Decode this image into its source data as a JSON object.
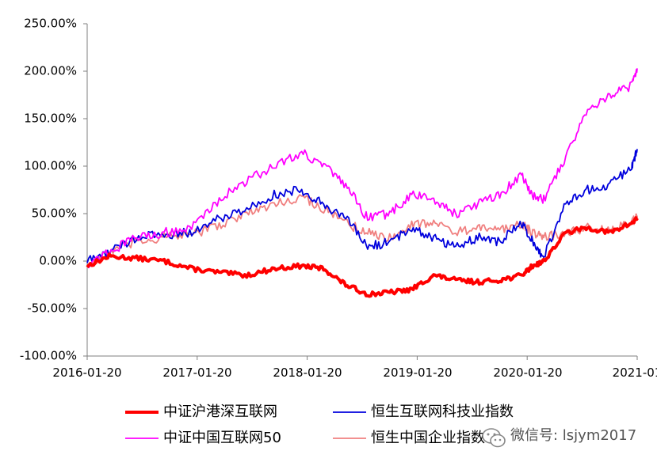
{
  "chart_data": {
    "type": "line",
    "title": "",
    "xlabel": "",
    "ylabel": "",
    "x_tick_labels": [
      "2016-01-20",
      "2017-01-20",
      "2018-01-20",
      "2019-01-20",
      "2020-01-20",
      "2021-01"
    ],
    "y_tick_labels": [
      "250.00%",
      "200.00%",
      "150.00%",
      "100.00%",
      "50.00%",
      "0.00%",
      "-50.00%",
      "-100.00%"
    ],
    "y_ticks": [
      250,
      200,
      150,
      100,
      50,
      0,
      -50,
      -100
    ],
    "ylim": [
      -100,
      250
    ],
    "xlim": [
      2016.05,
      2021.05
    ],
    "grid": false,
    "legend_position": "bottom",
    "x": [
      2016.05,
      2016.25,
      2016.5,
      2016.75,
      2017.0,
      2017.25,
      2017.5,
      2017.75,
      2018.0,
      2018.2,
      2018.4,
      2018.6,
      2018.8,
      2019.0,
      2019.2,
      2019.4,
      2019.6,
      2019.8,
      2020.0,
      2020.1,
      2020.2,
      2020.4,
      2020.6,
      2020.8,
      2021.0,
      2021.05
    ],
    "series": [
      {
        "name": "中证沪港深互联网",
        "color": "#ff0000",
        "width": 4,
        "values": [
          -5,
          5,
          3,
          0,
          -8,
          -12,
          -15,
          -8,
          -5,
          -8,
          -25,
          -35,
          -33,
          -30,
          -15,
          -20,
          -22,
          -20,
          -15,
          -5,
          0,
          30,
          35,
          30,
          40,
          45
        ]
      },
      {
        "name": "恒生互联网科技业指数",
        "color": "#0000dd",
        "width": 1.8,
        "values": [
          0,
          10,
          25,
          28,
          30,
          45,
          55,
          70,
          75,
          60,
          45,
          15,
          20,
          35,
          25,
          15,
          25,
          20,
          40,
          20,
          5,
          60,
          75,
          80,
          100,
          118
        ]
      },
      {
        "name": "中证中国互联网50",
        "color": "#ff00ff",
        "width": 1.8,
        "values": [
          -3,
          10,
          25,
          30,
          35,
          65,
          85,
          100,
          115,
          100,
          80,
          45,
          50,
          70,
          65,
          50,
          60,
          70,
          90,
          70,
          65,
          110,
          160,
          175,
          185,
          203
        ]
      },
      {
        "name": "恒生中国企业指数",
        "color": "#f08080",
        "width": 1.8,
        "values": [
          -5,
          10,
          20,
          25,
          28,
          38,
          50,
          60,
          68,
          55,
          40,
          30,
          25,
          38,
          42,
          30,
          35,
          32,
          40,
          30,
          25,
          30,
          35,
          32,
          40,
          48
        ]
      }
    ]
  },
  "watermark": {
    "icon": "wechat-icon",
    "text": "微信号: lsjym2017"
  }
}
